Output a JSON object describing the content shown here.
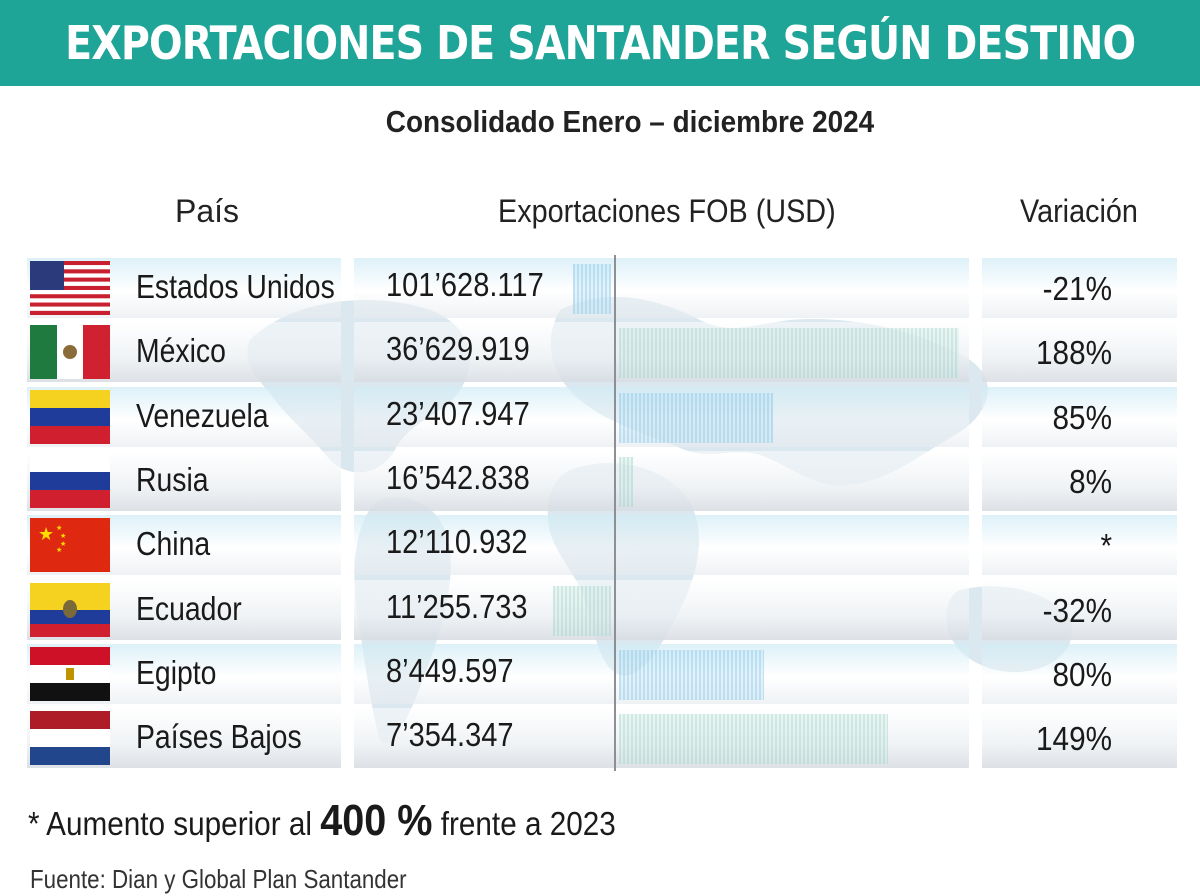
{
  "header": {
    "title": "EXPORTACIONES DE SANTANDER SEGÚN DESTINO",
    "subtitle": "Consolidado Enero –  diciembre 2024"
  },
  "colors": {
    "banner": "#1fa598",
    "bar_green": "#aad7cd",
    "bar_blue": "#96cdeb"
  },
  "chart_data": {
    "type": "table",
    "columns": [
      "País",
      "Exportaciones FOB (USD)",
      "Variación"
    ],
    "rows": [
      {
        "country": "Estados Unidos",
        "flag": "usa-flag",
        "fob": "101’628.117",
        "variation": "-21%",
        "variation_value": -21
      },
      {
        "country": "México",
        "flag": "mexico-flag",
        "fob": "36’629.919",
        "variation": "188%",
        "variation_value": 188
      },
      {
        "country": "Venezuela",
        "flag": "venezuela-flag",
        "fob": "23’407.947",
        "variation": "85%",
        "variation_value": 85
      },
      {
        "country": "Rusia",
        "flag": "russia-flag",
        "fob": "16’542.838",
        "variation": "8%",
        "variation_value": 8
      },
      {
        "country": "China",
        "flag": "china-flag",
        "fob": "12’110.932",
        "variation": "*",
        "variation_value": null
      },
      {
        "country": "Ecuador",
        "flag": "ecuador-flag",
        "fob": "11’255.733",
        "variation": "-32%",
        "variation_value": -32
      },
      {
        "country": "Egipto",
        "flag": "egypt-flag",
        "fob": "8’449.597",
        "variation": "80%",
        "variation_value": 80
      },
      {
        "country": "Países Bajos",
        "flag": "netherlands-flag",
        "fob": "7’354.347",
        "variation": "149%",
        "variation_value": 149
      }
    ]
  },
  "footer": {
    "note_prefix": "* Aumento superior al ",
    "note_big": "400 %",
    "note_suffix": " frente a 2023",
    "source": "Fuente: Dian y Global Plan Santander"
  }
}
